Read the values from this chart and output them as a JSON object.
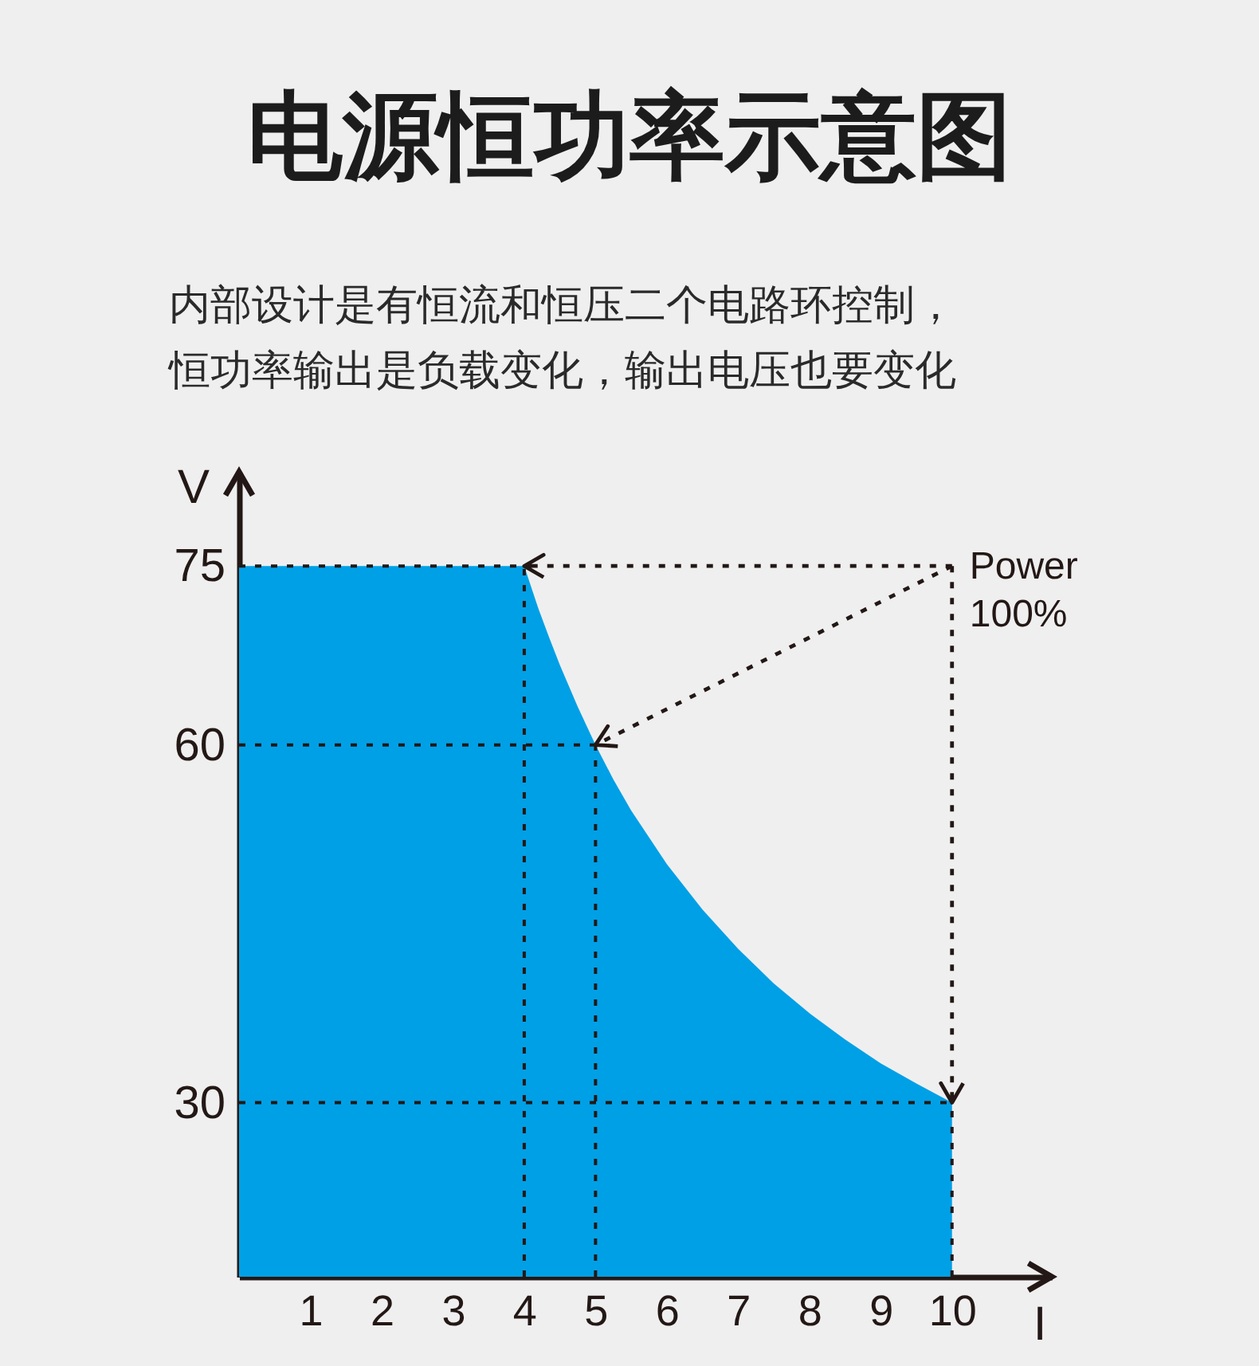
{
  "chart_data": {
    "type": "area",
    "title": "电源恒功率示意图",
    "subtitle": "内部设计是有恒流和恒压二个电路环控制，恒功率输出是负载变化，输出电压也要变化",
    "xlabel": "I",
    "ylabel": "V",
    "x": [
      0,
      4,
      4.1,
      4.2,
      4.35,
      4.5,
      4.75,
      5,
      5.25,
      5.5,
      6,
      6.5,
      7,
      7.5,
      8,
      8.5,
      9,
      9.5,
      10
    ],
    "series": [
      {
        "color": "#00a0e6",
        "values": [
          75,
          75,
          73.2,
          71.4,
          69,
          66.7,
          63.2,
          60,
          57.1,
          54.5,
          50,
          46.2,
          42.9,
          40,
          37.5,
          35.3,
          33.3,
          31.6,
          30
        ]
      }
    ],
    "xlim": [
      0,
      11.4
    ],
    "xticks": [
      1,
      2,
      3,
      4,
      5,
      6,
      7,
      8,
      9,
      10
    ],
    "ylim": [
      15.4,
      82.9
    ],
    "yticks": [
      30,
      60,
      75
    ],
    "ref_lines": [
      {
        "axis": "y",
        "value": 75,
        "color": "#231815",
        "line_style": "dotted"
      },
      {
        "axis": "y",
        "value": 60,
        "color": "#231815",
        "line_style": "dotted"
      },
      {
        "axis": "y",
        "value": 30,
        "color": "#231815",
        "line_style": "dotted"
      },
      {
        "axis": "x",
        "value": 4,
        "color": "#231815",
        "line_style": "dotted"
      },
      {
        "axis": "x",
        "value": 5,
        "color": "#231815",
        "line_style": "dotted"
      },
      {
        "axis": "x",
        "value": 10,
        "color": "#231815",
        "line_style": "dotted"
      }
    ],
    "annotations": [
      {
        "text": "Power 100%",
        "x": 10,
        "y": 75
      }
    ]
  }
}
